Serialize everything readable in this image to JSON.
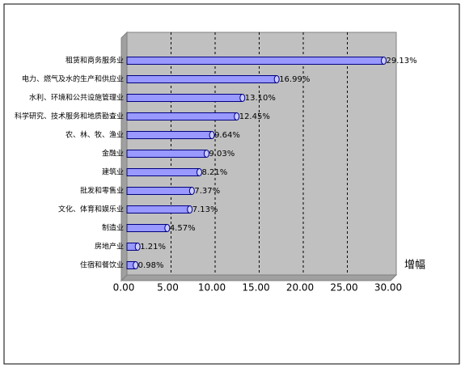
{
  "chart_data": {
    "type": "barh",
    "categories": [
      "租赁和商务服务业",
      "电力、燃气及水的生产和供应业",
      "水利、环境和公共设施管理业",
      "科学研究、技术服务和地质勘查业",
      "农、林、牧、渔业",
      "金融业",
      "建筑业",
      "批发和零售业",
      "文化、体育和娱乐业",
      "制造业",
      "房地产业",
      "住宿和餐饮业"
    ],
    "values": [
      29.13,
      16.99,
      13.1,
      12.45,
      9.64,
      9.03,
      8.21,
      7.37,
      7.13,
      4.57,
      1.21,
      0.98
    ],
    "value_labels": [
      "29.13%",
      "16.99%",
      "13.10%",
      "12.45%",
      "9.64%",
      "9.03%",
      "8.21%",
      "7.37%",
      "7.13%",
      "4.57%",
      "1.21%",
      "0.98%"
    ],
    "color": "#9999ff",
    "value_axis_label": "增幅",
    "xlim": [
      0,
      30
    ],
    "xticks": [
      {
        "value": 0,
        "label": "0.00"
      },
      {
        "value": 5,
        "label": "5.00"
      },
      {
        "value": 10,
        "label": "10.00"
      },
      {
        "value": 15,
        "label": "15.00"
      },
      {
        "value": 20,
        "label": "20.00"
      },
      {
        "value": 25,
        "label": "25.00"
      },
      {
        "value": 30,
        "label": "30.00"
      }
    ],
    "grid": true
  }
}
